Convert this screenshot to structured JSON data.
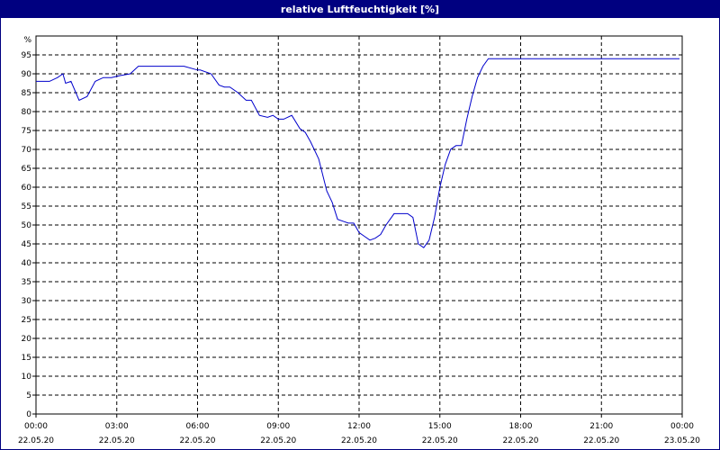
{
  "window": {
    "title": "relative Luftfeuchtigkeit [%]"
  },
  "colors": {
    "title_bg": "#000080",
    "title_text": "#ffffff",
    "line": "#0000cc",
    "grid": "#000000"
  },
  "chart_data": {
    "type": "line",
    "title": "relative Luftfeuchtigkeit [%]",
    "unit_label": "%",
    "ylim": [
      0,
      100
    ],
    "y_ticks": [
      0,
      5,
      10,
      15,
      20,
      25,
      30,
      35,
      40,
      45,
      50,
      55,
      60,
      65,
      70,
      75,
      80,
      85,
      90,
      95
    ],
    "x_range_hours": [
      0,
      24
    ],
    "x_ticks": [
      {
        "time": "00:00",
        "date": "22.05.20"
      },
      {
        "time": "03:00",
        "date": "22.05.20"
      },
      {
        "time": "06:00",
        "date": "22.05.20"
      },
      {
        "time": "09:00",
        "date": "22.05.20"
      },
      {
        "time": "12:00",
        "date": "22.05.20"
      },
      {
        "time": "15:00",
        "date": "22.05.20"
      },
      {
        "time": "18:00",
        "date": "22.05.20"
      },
      {
        "time": "21:00",
        "date": "22.05.20"
      },
      {
        "time": "00:00",
        "date": "23.05.20"
      }
    ],
    "grid": true,
    "series": [
      {
        "x": [
          0,
          0.5,
          0.8,
          1.0,
          1.1,
          1.3,
          1.6,
          1.9,
          2.2,
          2.5,
          2.8,
          3.1,
          3.5,
          3.8,
          4.0,
          4.2,
          4.5,
          5.0,
          5.5,
          6.0,
          6.1,
          6.5,
          6.8,
          7.0,
          7.2,
          7.5,
          7.8,
          8.0,
          8.3,
          8.6,
          8.8,
          9.0,
          9.2,
          9.5,
          9.8,
          10.0,
          10.2,
          10.5,
          10.8,
          11.0,
          11.2,
          11.4,
          11.6,
          11.8,
          12.0,
          12.2,
          12.4,
          12.6,
          12.8,
          13.0,
          13.3,
          13.5,
          13.8,
          14.0,
          14.2,
          14.4,
          14.6,
          14.8,
          15.0,
          15.2,
          15.4,
          15.6,
          15.8,
          16.0,
          16.2,
          16.4,
          16.6,
          16.8,
          17.0,
          17.2,
          17.4,
          17.6,
          17.8,
          18.0,
          18.2,
          18.5,
          19.0,
          20.0,
          21.0,
          22.0,
          23.0,
          23.9
        ],
        "y": [
          88,
          88,
          89,
          90,
          87.5,
          88,
          83,
          84,
          88,
          89,
          89,
          89.5,
          90,
          92,
          92,
          92,
          92,
          92,
          92,
          91,
          91,
          90,
          87,
          86.5,
          86.5,
          85,
          83,
          83,
          79,
          78.5,
          79,
          78,
          78,
          79,
          75.5,
          74.5,
          72,
          67.5,
          59,
          56,
          51.5,
          51,
          50.5,
          50.5,
          48,
          47,
          46,
          46.5,
          47.5,
          50,
          53,
          53,
          53,
          52,
          45,
          44,
          46,
          52,
          60,
          66,
          70,
          71,
          71,
          78,
          84,
          89,
          92,
          94,
          94,
          94,
          94,
          94,
          94,
          94,
          94,
          94,
          94,
          94,
          94,
          94,
          94,
          94
        ]
      }
    ]
  }
}
